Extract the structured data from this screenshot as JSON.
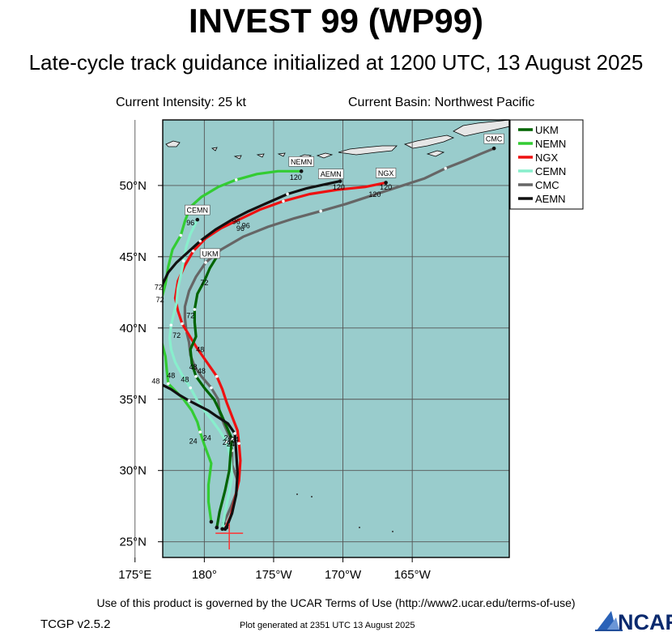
{
  "header": {
    "title": "INVEST 99 (WP99)",
    "subtitle": "Late-cycle track guidance initialized at 1200 UTC, 13 August 2025",
    "intensity": "Current Intensity: 25 kt",
    "basin": "Current Basin: Northwest Pacific"
  },
  "footer": {
    "terms": "Use of this product is governed by the UCAR Terms of Use (http://www2.ucar.edu/terms-of-use)",
    "version": "TCGP v2.5.2",
    "generated": "Plot generated at 2351 UTC   13 August 2025",
    "logo_text": "NCAR"
  },
  "colors": {
    "ocean": "#99cccc",
    "land": "#e6e6e6",
    "grid": "#555555",
    "storm_marker": "#ff3333"
  },
  "chart_data": {
    "type": "line",
    "title": "INVEST 99 (WP99)",
    "x_axis": {
      "range": [
        177,
        202
      ],
      "ticks": [
        175,
        180,
        185,
        190,
        195
      ],
      "tick_labels": [
        "175°E",
        "180°",
        "175°W",
        "170°W",
        "165°W"
      ]
    },
    "y_axis": {
      "range": [
        23.9,
        54.6
      ],
      "ticks": [
        25,
        30,
        35,
        40,
        45,
        50
      ],
      "tick_labels": [
        "25°N",
        "30°N",
        "35°N",
        "40°N",
        "45°N",
        "50°N"
      ]
    },
    "grid": true,
    "legend_position": "top-right",
    "initial_position": {
      "lon": 181.8,
      "lat": 25.6
    },
    "series": [
      {
        "name": "UKM",
        "color": "#006400",
        "points": [
          [
            180.9,
            26.0
          ],
          [
            181.1,
            27.1
          ],
          [
            181.5,
            28.6
          ],
          [
            181.8,
            30.0
          ],
          [
            181.9,
            31.3
          ],
          [
            182.0,
            32.2
          ],
          [
            181.6,
            33.1
          ],
          [
            181.1,
            34.2
          ],
          [
            180.7,
            35.0
          ],
          [
            180.0,
            35.8
          ],
          [
            179.4,
            36.6
          ],
          [
            179.1,
            37.5
          ],
          [
            179.0,
            38.5
          ],
          [
            179.4,
            39.4
          ],
          [
            179.3,
            40.4
          ],
          [
            179.3,
            41.3
          ],
          [
            179.5,
            42.4
          ],
          [
            180.0,
            43.3
          ],
          [
            180.4,
            44.2
          ],
          [
            180.9,
            45.0
          ]
        ],
        "hour_marks": [
          {
            "h": "24",
            "lon": 180.2,
            "lat": 32.3
          },
          {
            "h": "48",
            "lon": 179.2,
            "lat": 37.3
          },
          {
            "h": "72",
            "lon": 180.0,
            "lat": 43.2
          }
        ],
        "end_label": "UKM"
      },
      {
        "name": "NEMN",
        "color": "#33cc33",
        "points": [
          [
            180.5,
            26.4
          ],
          [
            180.3,
            27.8
          ],
          [
            180.3,
            29.0
          ],
          [
            180.5,
            30.5
          ],
          [
            180.0,
            31.8
          ],
          [
            179.7,
            32.7
          ],
          [
            179.5,
            33.4
          ],
          [
            179.1,
            34.2
          ],
          [
            178.5,
            35.0
          ],
          [
            177.9,
            35.6
          ],
          [
            177.4,
            36.1
          ],
          [
            177.3,
            37.0
          ],
          [
            177.2,
            38.0
          ],
          [
            176.9,
            39.1
          ],
          [
            176.7,
            40.0
          ],
          [
            176.9,
            40.9
          ],
          [
            176.9,
            42.0
          ],
          [
            177.2,
            43.1
          ],
          [
            177.4,
            44.3
          ],
          [
            177.7,
            45.5
          ],
          [
            178.3,
            46.5
          ],
          [
            178.6,
            47.5
          ],
          [
            179.0,
            48.5
          ],
          [
            179.8,
            49.2
          ],
          [
            181.0,
            49.9
          ],
          [
            182.3,
            50.4
          ],
          [
            183.8,
            50.8
          ],
          [
            185.3,
            51.0
          ],
          [
            186.4,
            51.0
          ],
          [
            187.0,
            51.0
          ]
        ],
        "hour_marks": [
          {
            "h": "24",
            "lon": 179.2,
            "lat": 32.1
          },
          {
            "h": "48",
            "lon": 177.6,
            "lat": 36.7
          },
          {
            "h": "72",
            "lon": 176.7,
            "lat": 42.9
          },
          {
            "h": "120",
            "lon": 186.6,
            "lat": 50.6
          }
        ],
        "end_label": "NEMN"
      },
      {
        "name": "NGX",
        "color": "#ee1111",
        "points": [
          [
            181.5,
            25.9
          ],
          [
            181.9,
            26.8
          ],
          [
            182.2,
            28.0
          ],
          [
            182.5,
            29.3
          ],
          [
            182.6,
            30.7
          ],
          [
            182.5,
            31.9
          ],
          [
            182.4,
            32.8
          ],
          [
            182.0,
            33.8
          ],
          [
            181.6,
            34.8
          ],
          [
            181.3,
            35.7
          ],
          [
            180.9,
            36.6
          ],
          [
            180.4,
            37.3
          ],
          [
            179.9,
            38.0
          ],
          [
            179.4,
            38.7
          ],
          [
            178.9,
            39.5
          ],
          [
            178.4,
            40.3
          ],
          [
            178.1,
            41.2
          ],
          [
            177.9,
            42.1
          ],
          [
            178.1,
            43.3
          ],
          [
            178.6,
            44.4
          ],
          [
            179.2,
            45.4
          ],
          [
            180.1,
            46.3
          ],
          [
            181.2,
            47.0
          ],
          [
            182.5,
            47.6
          ],
          [
            184.0,
            48.3
          ],
          [
            185.7,
            48.9
          ],
          [
            187.6,
            49.4
          ],
          [
            189.6,
            49.7
          ],
          [
            191.6,
            49.9
          ],
          [
            193.1,
            50.2
          ]
        ],
        "hour_marks": [
          {
            "h": "24",
            "lon": 182.2,
            "lat": 32.2
          },
          {
            "h": "48",
            "lon": 179.7,
            "lat": 38.5
          },
          {
            "h": "96",
            "lon": 182.6,
            "lat": 47.0
          },
          {
            "h": "120",
            "lon": 193.1,
            "lat": 49.9
          }
        ],
        "end_label": "NGX"
      },
      {
        "name": "CEMN",
        "color": "#88eecc",
        "points": [
          [
            181.3,
            25.9
          ],
          [
            181.5,
            27.1
          ],
          [
            181.8,
            28.5
          ],
          [
            182.0,
            29.6
          ],
          [
            181.9,
            30.9
          ],
          [
            181.6,
            32.0
          ],
          [
            181.1,
            32.8
          ],
          [
            180.5,
            33.6
          ],
          [
            180.0,
            34.2
          ],
          [
            179.5,
            34.9
          ],
          [
            179.0,
            35.8
          ],
          [
            178.4,
            36.7
          ],
          [
            177.9,
            37.6
          ],
          [
            177.6,
            38.5
          ],
          [
            177.5,
            39.3
          ],
          [
            177.6,
            40.2
          ],
          [
            177.8,
            41.0
          ],
          [
            178.0,
            41.8
          ],
          [
            178.1,
            42.8
          ],
          [
            178.3,
            43.7
          ],
          [
            178.5,
            44.7
          ],
          [
            178.7,
            45.7
          ],
          [
            179.0,
            46.6
          ],
          [
            179.3,
            47.2
          ],
          [
            179.5,
            47.6
          ]
        ],
        "hour_marks": [
          {
            "h": "24",
            "lon": 181.6,
            "lat": 32.0
          },
          {
            "h": "48",
            "lon": 178.6,
            "lat": 36.4
          },
          {
            "h": "72",
            "lon": 178.0,
            "lat": 39.5
          },
          {
            "h": "96",
            "lon": 179.0,
            "lat": 47.4
          }
        ],
        "end_label": "CEMN"
      },
      {
        "name": "CMC",
        "color": "#666666",
        "points": [
          [
            181.4,
            26.3
          ],
          [
            181.9,
            27.4
          ],
          [
            182.3,
            28.4
          ],
          [
            182.4,
            29.3
          ],
          [
            182.0,
            30.4
          ],
          [
            182.0,
            31.4
          ],
          [
            181.8,
            32.4
          ],
          [
            181.4,
            33.3
          ],
          [
            181.1,
            34.1
          ],
          [
            181.0,
            35.0
          ],
          [
            180.5,
            35.8
          ],
          [
            179.8,
            36.6
          ],
          [
            179.3,
            37.3
          ],
          [
            179.0,
            38.1
          ],
          [
            178.9,
            39.0
          ],
          [
            178.7,
            39.8
          ],
          [
            178.6,
            40.7
          ],
          [
            178.6,
            41.5
          ],
          [
            178.9,
            42.6
          ],
          [
            179.4,
            43.6
          ],
          [
            180.1,
            44.6
          ],
          [
            181.2,
            45.5
          ],
          [
            182.8,
            46.4
          ],
          [
            184.6,
            47.1
          ],
          [
            186.5,
            47.7
          ],
          [
            188.4,
            48.2
          ],
          [
            190.2,
            48.7
          ],
          [
            192.1,
            49.3
          ],
          [
            194.0,
            49.9
          ],
          [
            195.9,
            50.5
          ],
          [
            197.4,
            51.2
          ],
          [
            198.7,
            51.7
          ],
          [
            199.9,
            52.2
          ],
          [
            200.9,
            52.6
          ]
        ],
        "hour_marks": [
          {
            "h": "24",
            "lon": 181.9,
            "lat": 31.9
          },
          {
            "h": "48",
            "lon": 179.8,
            "lat": 37.0
          },
          {
            "h": "72",
            "lon": 179.0,
            "lat": 40.9
          },
          {
            "h": "96",
            "lon": 183.0,
            "lat": 47.2
          },
          {
            "h": "120",
            "lon": 192.3,
            "lat": 49.4
          }
        ],
        "end_label": "CMC"
      },
      {
        "name": "AEMN",
        "color": "#111111",
        "points": [
          [
            181.6,
            26.0
          ],
          [
            182.0,
            27.0
          ],
          [
            182.3,
            28.3
          ],
          [
            182.4,
            29.8
          ],
          [
            182.3,
            31.3
          ],
          [
            182.2,
            32.6
          ],
          [
            181.7,
            33.3
          ],
          [
            180.9,
            33.8
          ],
          [
            180.3,
            34.2
          ],
          [
            179.5,
            34.6
          ],
          [
            178.9,
            34.9
          ],
          [
            178.2,
            35.3
          ],
          [
            177.6,
            35.7
          ],
          [
            177.0,
            36.0
          ],
          [
            176.2,
            36.3
          ],
          [
            176.0,
            37.4
          ],
          [
            176.2,
            38.5
          ],
          [
            176.5,
            39.5
          ],
          [
            176.6,
            40.4
          ],
          [
            176.7,
            41.3
          ],
          [
            176.8,
            42.2
          ],
          [
            177.0,
            43.1
          ],
          [
            177.4,
            43.9
          ],
          [
            178.0,
            44.6
          ],
          [
            178.8,
            45.3
          ],
          [
            179.7,
            46.1
          ],
          [
            180.8,
            46.9
          ],
          [
            182.0,
            47.6
          ],
          [
            183.2,
            48.2
          ],
          [
            184.6,
            48.8
          ],
          [
            186.0,
            49.4
          ],
          [
            187.4,
            49.8
          ],
          [
            188.8,
            50.1
          ],
          [
            189.8,
            50.3
          ]
        ],
        "hour_marks": [
          {
            "h": "24",
            "lon": 181.7,
            "lat": 32.3
          },
          {
            "h": "48",
            "lon": 176.5,
            "lat": 36.3
          },
          {
            "h": "72",
            "lon": 176.8,
            "lat": 42.0
          },
          {
            "h": "96",
            "lon": 182.3,
            "lat": 47.5
          },
          {
            "h": "120",
            "lon": 189.7,
            "lat": 49.9
          }
        ],
        "end_label": "AEMN"
      }
    ]
  }
}
